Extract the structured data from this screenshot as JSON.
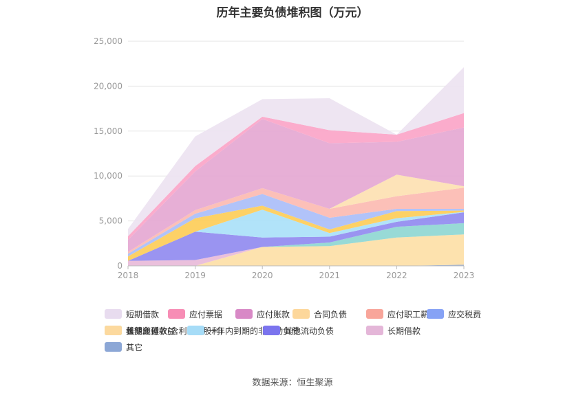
{
  "chart_data": {
    "type": "area",
    "stacked": true,
    "title": "历年主要负债堆积图（万元）",
    "source": "数据来源：恒生聚源",
    "x": [
      "2018",
      "2019",
      "2020",
      "2021",
      "2022",
      "2023"
    ],
    "ylim": [
      0,
      25000
    ],
    "yticks": [
      "0",
      "5,000",
      "10,000",
      "15,000",
      "20,000",
      "25,000"
    ],
    "grid": true,
    "legend_position": "bottom",
    "series": [
      {
        "name": "其它",
        "color": "#8fa9d6",
        "values": [
          0,
          0,
          0,
          0,
          0,
          120
        ]
      },
      {
        "name": "长期递延收益",
        "color": "#fddfa5",
        "values": [
          0,
          0,
          2100,
          2200,
          3150,
          3380
        ]
      },
      {
        "name": "租赁负债",
        "color": "#8dd6d2",
        "values": [
          0,
          0,
          0,
          400,
          1200,
          1250
        ]
      },
      {
        "name": "长期借款",
        "color": "#e8b9d8",
        "values": [
          550,
          650,
          0,
          0,
          0,
          0
        ]
      },
      {
        "name": "其他流动负债",
        "color": "#8f88f0",
        "values": [
          0,
          3150,
          1050,
          650,
          550,
          1200
        ]
      },
      {
        "name": "一年内到期的非流动负债",
        "color": "#a8e0f8",
        "values": [
          0,
          0,
          3100,
          400,
          400,
          50
        ]
      },
      {
        "name": "其他应付款(含利息和股利)",
        "color": "#fdcc55",
        "values": [
          500,
          1500,
          450,
          400,
          800,
          150
        ]
      },
      {
        "name": "应交税费",
        "color": "#a8bcf8",
        "values": [
          300,
          500,
          1300,
          1300,
          250,
          200
        ]
      },
      {
        "name": "应付职工薪酬",
        "color": "#fcb9b0",
        "values": [
          200,
          400,
          650,
          1000,
          1400,
          2350
        ]
      },
      {
        "name": "合同负债",
        "color": "#fde0b0",
        "values": [
          0,
          0,
          0,
          0,
          2400,
          160
        ]
      },
      {
        "name": "应付账款",
        "color": "#e4a6d2",
        "values": [
          1350,
          4300,
          7700,
          7300,
          3650,
          6540
        ]
      },
      {
        "name": "应付票据",
        "color": "#fba3c6",
        "values": [
          400,
          600,
          250,
          1450,
          800,
          1600
        ]
      },
      {
        "name": "短期借款",
        "color": "#ece2f1",
        "values": [
          800,
          3300,
          1950,
          3550,
          0,
          5100
        ]
      }
    ],
    "legend_order": [
      "短期借款",
      "应付票据",
      "应付账款",
      "合同负债",
      "应付职工薪酬",
      "应交税费",
      "其他应付款(含利息和股利)",
      "一年内到期的非流动负债",
      "其他流动负债",
      "长期借款",
      "租赁负债",
      "长期递延收益",
      "其它"
    ],
    "legend_swatch_colors": {
      "短期借款": "#e8dcef",
      "应付票据": "#f78db5",
      "应付账款": "#d889c6",
      "合同负债": "#fdd79a",
      "应付职工薪酬": "#f8a59a",
      "应交税费": "#86a2f5",
      "其他应付款(含利息和股利)": "#fbc23c",
      "一年内到期的非流动负债": "#a6dcf7",
      "其他流动负债": "#7b74ee",
      "长期借款": "#e4b6d8",
      "租赁负债": "#86d6d2",
      "长期递延收益": "#fcd99e",
      "其它": "#8ca7d6"
    }
  }
}
